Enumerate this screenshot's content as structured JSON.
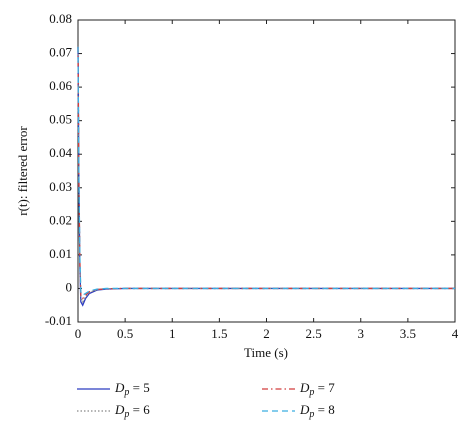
{
  "chart_data": {
    "type": "line",
    "xlabel": "Time (s)",
    "ylabel": "r(t): filtered error",
    "x": [
      0,
      0.01,
      0.02,
      0.03,
      0.05,
      0.08,
      0.12,
      0.2,
      0.3,
      0.5,
      1,
      2,
      3,
      4
    ],
    "series": [
      {
        "name": "Dp = 5",
        "color": "#2c3cc0",
        "linestyle": "solid",
        "values": [
          0.072,
          0.03,
          0.006,
          -0.004,
          -0.005,
          -0.003,
          -0.0015,
          -0.0005,
          -0.0002,
          0,
          0,
          0,
          0,
          0
        ]
      },
      {
        "name": "Dp = 6",
        "color": "#888888",
        "linestyle": "dotted",
        "values": [
          0.072,
          0.03,
          0.007,
          -0.003,
          -0.004,
          -0.0025,
          -0.0012,
          -0.0004,
          -0.0001,
          0,
          0,
          0,
          0,
          0
        ]
      },
      {
        "name": "Dp = 7",
        "color": "#d23c3c",
        "linestyle": "dashdot",
        "values": [
          0.072,
          0.031,
          0.008,
          -0.002,
          -0.003,
          -0.002,
          -0.001,
          -0.0003,
          -0.0001,
          0,
          0,
          0,
          0,
          0
        ]
      },
      {
        "name": "Dp = 8",
        "color": "#3aaee0",
        "linestyle": "dashed",
        "values": [
          0.072,
          0.032,
          0.009,
          -0.001,
          -0.002,
          -0.0015,
          -0.0008,
          -0.0002,
          0,
          0,
          0,
          0,
          0,
          0
        ]
      }
    ],
    "xlim": [
      0,
      4
    ],
    "xticks": [
      0,
      0.5,
      1,
      1.5,
      2,
      2.5,
      3,
      3.5,
      4
    ],
    "ylim": [
      -0.01,
      0.08
    ],
    "yticks": [
      -0.01,
      0,
      0.01,
      0.02,
      0.03,
      0.04,
      0.05,
      0.06,
      0.07,
      0.08
    ],
    "legend": "bottom"
  }
}
